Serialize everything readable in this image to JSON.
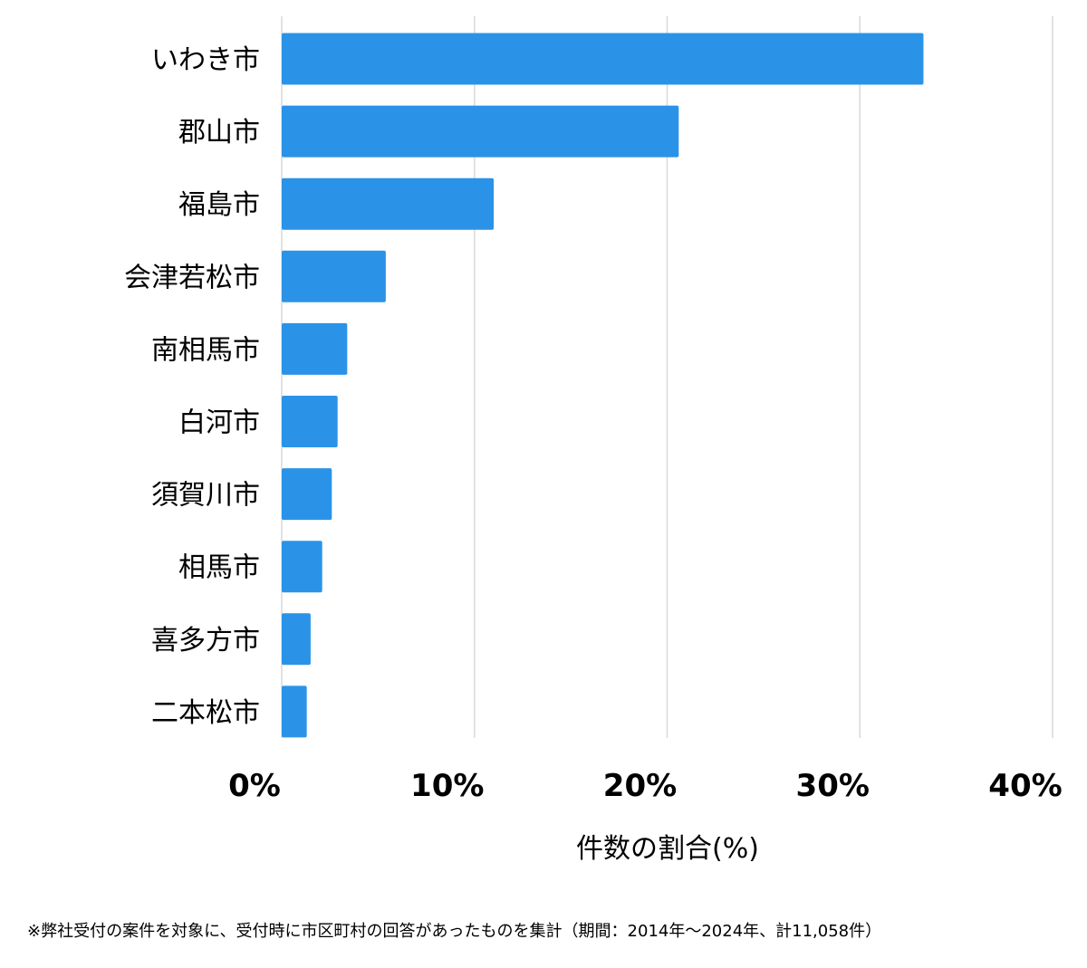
{
  "chart_data": {
    "type": "bar",
    "orientation": "horizontal",
    "categories": [
      "いわき市",
      "郡山市",
      "福島市",
      "会津若松市",
      "南相馬市",
      "白河市",
      "須賀川市",
      "相馬市",
      "喜多方市",
      "二本松市"
    ],
    "values": [
      33.3,
      20.6,
      11.0,
      5.4,
      3.4,
      2.9,
      2.6,
      2.1,
      1.5,
      1.3
    ],
    "xticks": [
      0,
      10,
      20,
      30,
      40
    ],
    "xtick_labels": [
      "0%",
      "10%",
      "20%",
      "30%",
      "40%"
    ],
    "xlim": [
      0,
      40
    ],
    "xlabel": "件数の割合(%)",
    "ylabel": "",
    "grid": true,
    "bar_color": "#2a93e8",
    "grid_color": "#d9d9d9"
  },
  "footnote": "※弊社受付の案件を対象に、受付時に市区町村の回答があったものを集計（期間：2014年〜2024年、計11,058件）"
}
